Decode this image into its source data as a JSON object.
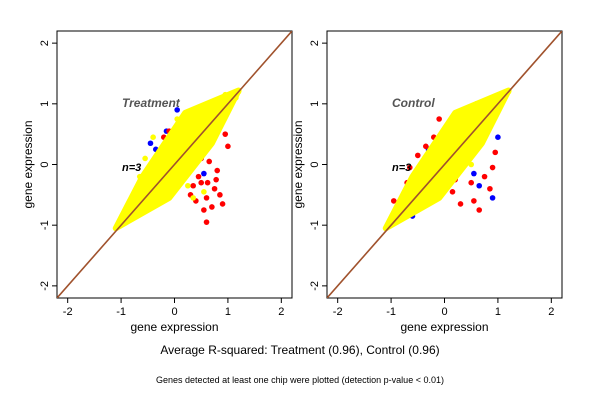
{
  "chart_data": [
    {
      "type": "scatter",
      "panel_label": "Treatment",
      "overlay_text": "n=3",
      "xlabel": "gene expression",
      "ylabel": "gene expression",
      "xlim": [
        -2.2,
        2.2
      ],
      "ylim": [
        -2.2,
        2.2
      ],
      "xticks": [
        -2,
        -1,
        0,
        1,
        2
      ],
      "yticks": [
        -2,
        -1,
        0,
        1,
        2
      ],
      "identity_line": true,
      "series": [
        {
          "color": "#0000ff",
          "points": [
            [
              -0.35,
              0.25
            ],
            [
              -0.15,
              0.55
            ],
            [
              0.2,
              0.55
            ],
            [
              0.45,
              0.35
            ],
            [
              -0.55,
              -0.25
            ],
            [
              0.05,
              0.9
            ],
            [
              -0.3,
              0.1
            ],
            [
              0.55,
              -0.15
            ],
            [
              -0.8,
              -0.75
            ],
            [
              -1.0,
              -0.95
            ],
            [
              -0.45,
              0.35
            ],
            [
              0.35,
              0.6
            ]
          ]
        },
        {
          "color": "#ff0000",
          "points": [
            [
              0.5,
              -0.3
            ],
            [
              0.6,
              -0.55
            ],
            [
              0.75,
              -0.4
            ],
            [
              0.55,
              -0.75
            ],
            [
              0.8,
              -0.1
            ],
            [
              0.65,
              0.05
            ],
            [
              0.4,
              -0.6
            ],
            [
              0.45,
              -0.2
            ],
            [
              0.7,
              -0.7
            ],
            [
              0.3,
              -0.5
            ],
            [
              0.95,
              0.5
            ],
            [
              1.0,
              0.3
            ],
            [
              0.6,
              -0.95
            ],
            [
              0.35,
              -0.35
            ],
            [
              0.85,
              -0.5
            ],
            [
              -0.1,
              0.55
            ],
            [
              -0.2,
              0.45
            ],
            [
              0.15,
              0.35
            ],
            [
              -0.6,
              -0.5
            ],
            [
              -0.7,
              -0.8
            ],
            [
              0.25,
              -0.15
            ],
            [
              0.5,
              0.1
            ],
            [
              0.78,
              -0.25
            ],
            [
              0.62,
              -0.3
            ],
            [
              0.9,
              -0.65
            ]
          ]
        },
        {
          "color": "#ffff00",
          "points": [
            [
              -1.05,
              -1.0
            ],
            [
              -0.9,
              -0.85
            ],
            [
              -0.6,
              -0.55
            ],
            [
              -0.3,
              -0.25
            ],
            [
              0.0,
              0.0
            ],
            [
              0.3,
              0.3
            ],
            [
              0.6,
              0.6
            ],
            [
              0.9,
              0.9
            ],
            [
              1.15,
              1.1
            ],
            [
              -0.5,
              -0.2
            ],
            [
              -0.2,
              0.2
            ],
            [
              0.2,
              -0.1
            ],
            [
              0.5,
              0.2
            ],
            [
              0.05,
              0.75
            ],
            [
              -0.4,
              0.45
            ],
            [
              -0.55,
              0.1
            ],
            [
              -0.65,
              -0.2
            ],
            [
              -0.5,
              -0.65
            ],
            [
              0.25,
              -0.35
            ],
            [
              0.4,
              0.05
            ],
            [
              0.7,
              0.95
            ],
            [
              0.45,
              0.85
            ],
            [
              0.15,
              0.6
            ],
            [
              -0.1,
              0.35
            ],
            [
              0.0,
              -0.3
            ],
            [
              -0.35,
              -0.55
            ],
            [
              0.8,
              0.7
            ],
            [
              1.05,
              1.0
            ],
            [
              0.35,
              -0.55
            ],
            [
              0.55,
              -0.45
            ],
            [
              0.95,
              1.15
            ],
            [
              1.2,
              1.2
            ],
            [
              0.65,
              0.9
            ],
            [
              0.1,
              0.45
            ]
          ]
        }
      ]
    },
    {
      "type": "scatter",
      "panel_label": "Control",
      "overlay_text": "n=3",
      "xlabel": "gene expression",
      "ylabel": "gene expression",
      "xlim": [
        -2.2,
        2.2
      ],
      "ylim": [
        -2.2,
        2.2
      ],
      "xticks": [
        -2,
        -1,
        0,
        1,
        2
      ],
      "yticks": [
        -2,
        -1,
        0,
        1,
        2
      ],
      "identity_line": true,
      "series": [
        {
          "color": "#0000ff",
          "points": [
            [
              0.95,
              0.9
            ],
            [
              0.7,
              0.95
            ],
            [
              0.5,
              0.45
            ],
            [
              -0.3,
              0.25
            ],
            [
              0.9,
              -0.55
            ],
            [
              0.65,
              -0.35
            ],
            [
              -0.55,
              -0.35
            ],
            [
              0.3,
              0.55
            ],
            [
              -0.95,
              -0.9
            ],
            [
              0.55,
              -0.15
            ],
            [
              1.0,
              0.45
            ],
            [
              -0.6,
              -0.85
            ]
          ]
        },
        {
          "color": "#ff0000",
          "points": [
            [
              -0.5,
              0.15
            ],
            [
              -0.35,
              0.3
            ],
            [
              -0.65,
              -0.05
            ],
            [
              -0.75,
              -0.55
            ],
            [
              -0.5,
              -0.75
            ],
            [
              -0.2,
              0.45
            ],
            [
              0.0,
              0.55
            ],
            [
              0.25,
              0.65
            ],
            [
              0.45,
              0.9
            ],
            [
              0.6,
              1.0
            ],
            [
              0.8,
              1.05
            ],
            [
              0.75,
              -0.2
            ],
            [
              0.85,
              -0.4
            ],
            [
              0.55,
              -0.6
            ],
            [
              0.65,
              -0.75
            ],
            [
              0.3,
              -0.65
            ],
            [
              0.15,
              -0.45
            ],
            [
              0.5,
              -0.3
            ],
            [
              0.95,
              0.2
            ],
            [
              0.9,
              -0.05
            ],
            [
              -0.85,
              -0.8
            ],
            [
              -0.95,
              -0.6
            ],
            [
              0.4,
              0.7
            ],
            [
              -0.1,
              0.75
            ],
            [
              0.7,
              0.55
            ],
            [
              -0.4,
              -0.4
            ],
            [
              0.2,
              -0.25
            ],
            [
              -0.15,
              0.1
            ],
            [
              0.35,
              0.25
            ],
            [
              -0.7,
              -0.3
            ],
            [
              1.1,
              1.15
            ]
          ]
        },
        {
          "color": "#ffff00",
          "points": [
            [
              -1.0,
              -0.95
            ],
            [
              -0.8,
              -0.8
            ],
            [
              -0.5,
              -0.5
            ],
            [
              -0.2,
              -0.2
            ],
            [
              0.1,
              0.1
            ],
            [
              0.4,
              0.4
            ],
            [
              0.7,
              0.7
            ],
            [
              1.0,
              1.0
            ],
            [
              1.2,
              1.2
            ],
            [
              -0.6,
              -0.3
            ],
            [
              -0.3,
              0.1
            ],
            [
              0.0,
              0.3
            ],
            [
              0.3,
              0.1
            ],
            [
              0.6,
              0.3
            ],
            [
              -0.4,
              -0.6
            ],
            [
              0.2,
              -0.15
            ],
            [
              0.5,
              0.0
            ],
            [
              -0.1,
              -0.3
            ],
            [
              0.15,
              0.45
            ],
            [
              0.45,
              0.65
            ],
            [
              -0.75,
              -0.55
            ],
            [
              -0.2,
              0.25
            ],
            [
              0.8,
              0.85
            ],
            [
              0.55,
              0.8
            ],
            [
              0.05,
              -0.1
            ],
            [
              0.35,
              0.55
            ],
            [
              -0.45,
              -0.2
            ],
            [
              0.9,
              0.95
            ]
          ]
        }
      ]
    }
  ],
  "caption": "Average R-squared: Treatment (0.96), Control (0.96)",
  "footnote": "Genes detected at least one chip were plotted (detection p-value < 0.01)"
}
